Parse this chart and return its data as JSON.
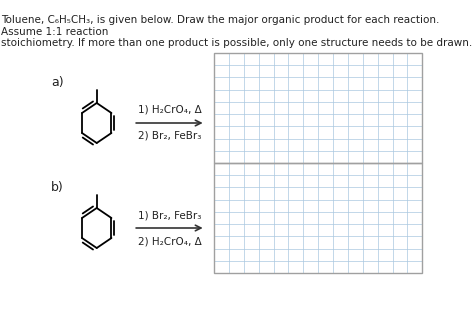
{
  "title_text": "Toluene, C₆H₅CH₃, is given below. Draw the major organic product for each reaction. Assume 1:1 reaction\nstoichiometry. If more than one product is possible, only one structure needs to be drawn.",
  "title_fontsize": 7.5,
  "label_a": "a)",
  "label_b": "b)",
  "label_fontsize": 9,
  "reaction_a_line1": "1) H₂CrO₄, Δ",
  "reaction_a_line2": "2) Br₂, FeBr₃",
  "reaction_b_line1": "1) Br₂, FeBr₃",
  "reaction_b_line2": "2) H₂CrO₄, Δ",
  "reaction_fontsize": 7.5,
  "grid_color": "#aac8e0",
  "grid_linewidth": 0.5,
  "box_color": "#a0a0a0",
  "background_color": "#ffffff",
  "benzene_color": "#000000",
  "arrow_color": "#333333"
}
